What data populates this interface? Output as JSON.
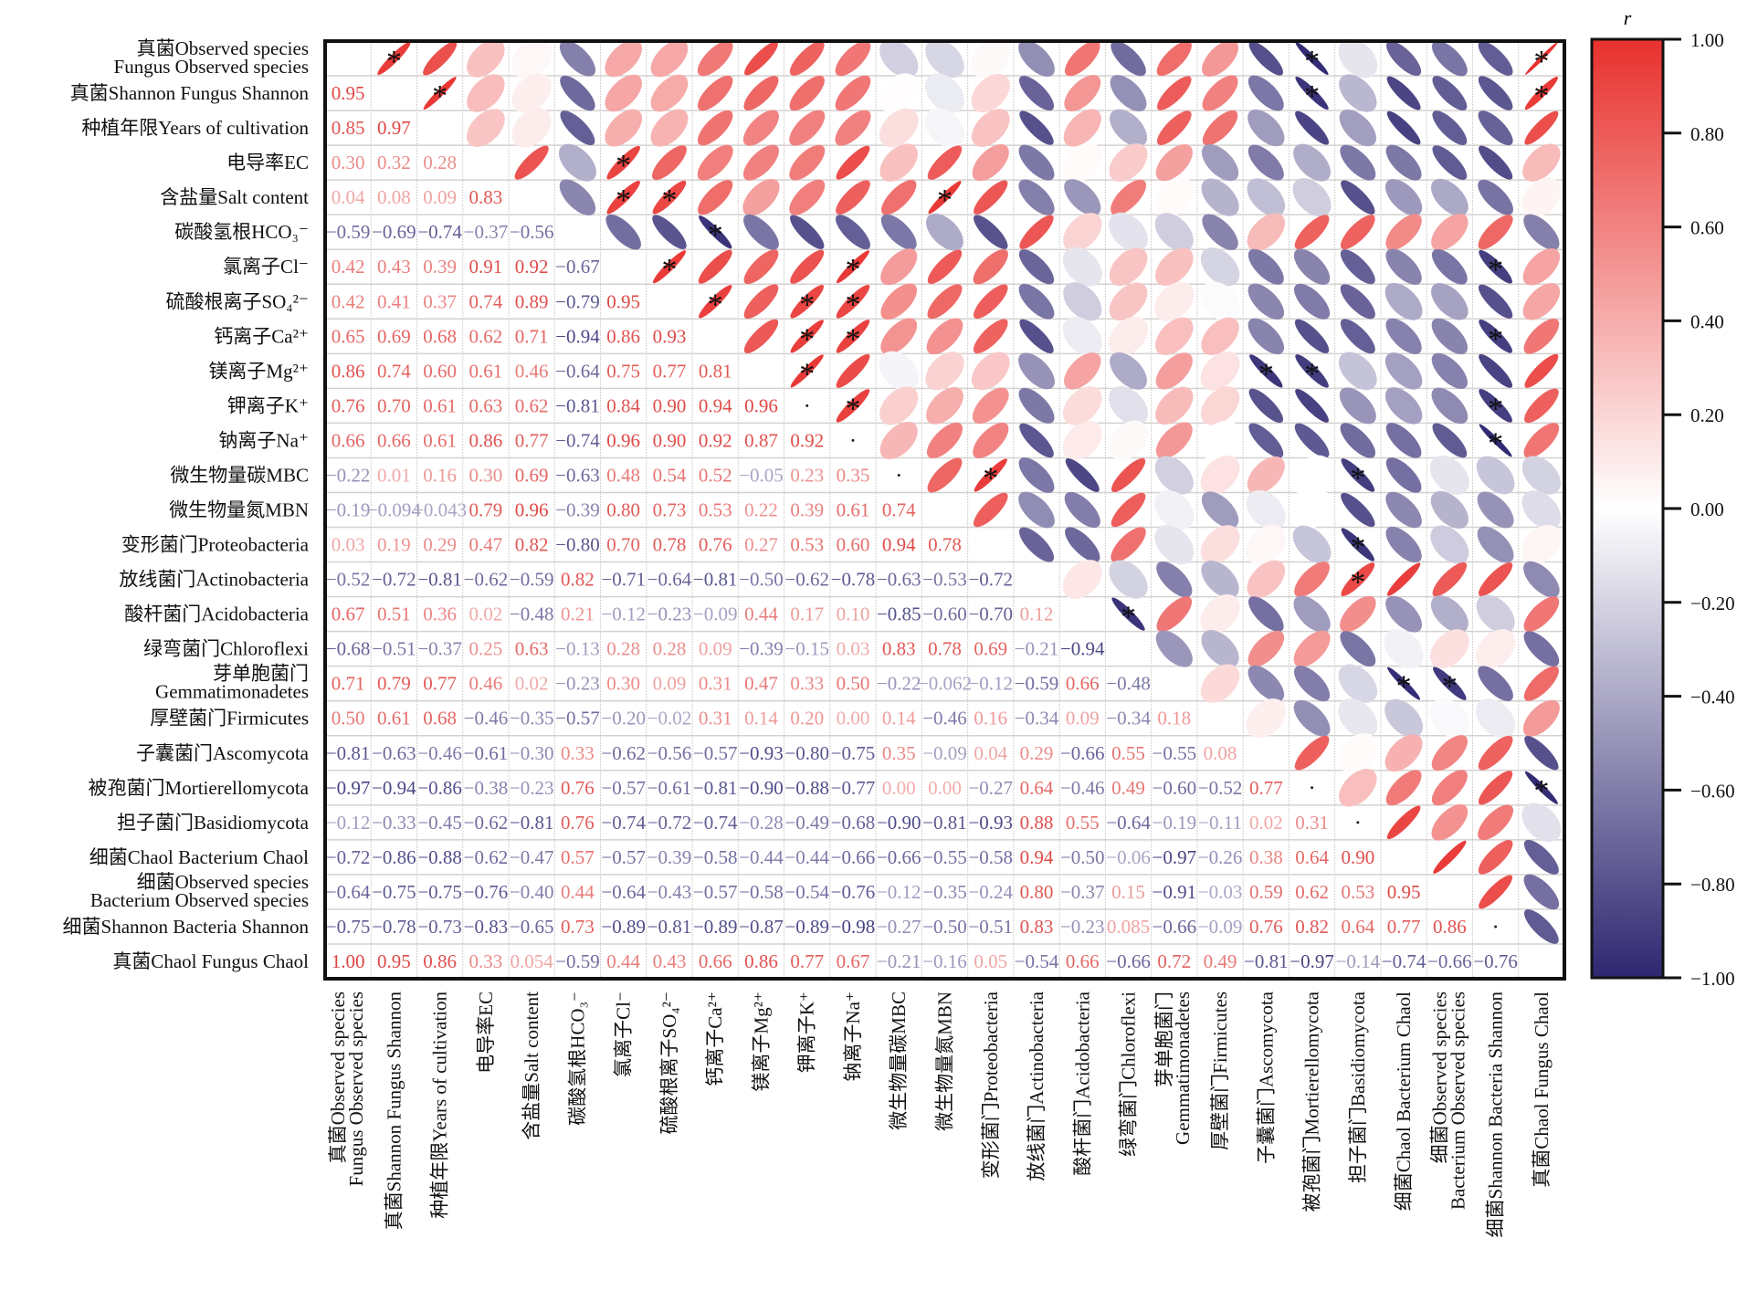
{
  "chart_data": {
    "type": "heatmap",
    "subtype": "correlation-matrix (lower: numbers, upper: ellipses)",
    "labels": [
      [
        "真菌Observed species",
        "Fungus Observed species"
      ],
      [
        "真菌Shannon Fungus Shannon"
      ],
      [
        "种植年限Years of cultivation"
      ],
      [
        "电导率EC"
      ],
      [
        "含盐量Salt content"
      ],
      [
        "碳酸氢根HCO₃⁻"
      ],
      [
        "氯离子Cl⁻"
      ],
      [
        "硫酸根离子SO₄²⁻"
      ],
      [
        "钙离子Ca²⁺"
      ],
      [
        "镁离子Mg²⁺"
      ],
      [
        "钾离子K⁺"
      ],
      [
        "钠离子Na⁺"
      ],
      [
        "微生物量碳MBC"
      ],
      [
        "微生物量氮MBN"
      ],
      [
        "变形菌门Proteobacteria"
      ],
      [
        "放线菌门Actinobacteria"
      ],
      [
        "酸杆菌门Acidobacteria"
      ],
      [
        "绿弯菌门Chloroflexi"
      ],
      [
        "芽单胞菌门",
        "Gemmatimonadetes"
      ],
      [
        "厚壁菌门Firmicutes"
      ],
      [
        "子囊菌门Ascomycota"
      ],
      [
        "被孢菌门Mortierellomycota"
      ],
      [
        "担子菌门Basidiomycota"
      ],
      [
        "细菌Chaol Bacterium Chaol"
      ],
      [
        "细菌Observed species",
        "Bacterium Observed species"
      ],
      [
        "细菌Shannon Bacteria Shannon"
      ],
      [
        "真菌Chaol Fungus Chaol"
      ]
    ],
    "lower_triangle": [
      [],
      [
        "0.95"
      ],
      [
        "0.85",
        "0.97"
      ],
      [
        "0.30",
        "0.32",
        "0.28"
      ],
      [
        "0.04",
        "0.08",
        "0.09",
        "0.83"
      ],
      [
        "-0.59",
        "-0.69",
        "-0.74",
        "-0.37",
        "-0.56"
      ],
      [
        "0.42",
        "0.43",
        "0.39",
        "0.91",
        "0.92",
        "-0.67"
      ],
      [
        "0.42",
        "0.41",
        "0.37",
        "0.74",
        "0.89",
        "-0.79",
        "0.95"
      ],
      [
        "0.65",
        "0.69",
        "0.68",
        "0.62",
        "0.71",
        "-0.94",
        "0.86",
        "0.93"
      ],
      [
        "0.86",
        "0.74",
        "0.60",
        "0.61",
        "0.46",
        "-0.64",
        "0.75",
        "0.77",
        "0.81"
      ],
      [
        "0.76",
        "0.70",
        "0.61",
        "0.63",
        "0.62",
        "-0.81",
        "0.84",
        "0.90",
        "0.94",
        "0.96"
      ],
      [
        "0.66",
        "0.66",
        "0.61",
        "0.86",
        "0.77",
        "-0.74",
        "0.96",
        "0.90",
        "0.92",
        "0.87",
        "0.92"
      ],
      [
        "-0.22",
        "0.01",
        "0.16",
        "0.30",
        "0.69",
        "-0.63",
        "0.48",
        "0.54",
        "0.52",
        "-0.05",
        "0.23",
        "0.35"
      ],
      [
        "-0.19",
        "-0.094",
        "-0.043",
        "0.79",
        "0.96",
        "-0.39",
        "0.80",
        "0.73",
        "0.53",
        "0.22",
        "0.39",
        "0.61",
        "0.74"
      ],
      [
        "0.03",
        "0.19",
        "0.29",
        "0.47",
        "0.82",
        "-0.80",
        "0.70",
        "0.78",
        "0.76",
        "0.27",
        "0.53",
        "0.60",
        "0.94",
        "0.78"
      ],
      [
        "-0.52",
        "-0.72",
        "-0.81",
        "-0.62",
        "-0.59",
        "0.82",
        "-0.71",
        "-0.64",
        "-0.81",
        "-0.50",
        "-0.62",
        "-0.78",
        "-0.63",
        "-0.53",
        "-0.72"
      ],
      [
        "0.67",
        "0.51",
        "0.36",
        "0.02",
        "-0.48",
        "0.21",
        "-0.12",
        "-0.23",
        "-0.09",
        "0.44",
        "0.17",
        "0.10",
        "-0.85",
        "-0.60",
        "-0.70",
        "0.12"
      ],
      [
        "-0.68",
        "-0.51",
        "-0.37",
        "0.25",
        "0.63",
        "-0.13",
        "0.28",
        "0.28",
        "0.09",
        "-0.39",
        "-0.15",
        "0.03",
        "0.83",
        "0.78",
        "0.69",
        "-0.21",
        "-0.94"
      ],
      [
        "0.71",
        "0.79",
        "0.77",
        "0.46",
        "0.02",
        "-0.23",
        "0.30",
        "0.09",
        "0.31",
        "0.47",
        "0.33",
        "0.50",
        "-0.22",
        "-0.062",
        "-0.12",
        "-0.59",
        "0.66",
        "-0.48"
      ],
      [
        "0.50",
        "0.61",
        "0.68",
        "-0.46",
        "-0.35",
        "-0.57",
        "-0.20",
        "-0.02",
        "0.31",
        "0.14",
        "0.20",
        "0.00",
        "0.14",
        "-0.46",
        "0.16",
        "-0.34",
        "0.09",
        "-0.34",
        "0.18"
      ],
      [
        "-0.81",
        "-0.63",
        "-0.46",
        "-0.61",
        "-0.30",
        "0.33",
        "-0.62",
        "-0.56",
        "-0.57",
        "-0.93",
        "-0.80",
        "-0.75",
        "0.35",
        "-0.09",
        "0.04",
        "0.29",
        "-0.66",
        "0.55",
        "-0.55",
        "0.08"
      ],
      [
        "-0.97",
        "-0.94",
        "-0.86",
        "-0.38",
        "-0.23",
        "0.76",
        "-0.57",
        "-0.61",
        "-0.81",
        "-0.90",
        "-0.88",
        "-0.77",
        "0.00",
        "0.00",
        "-0.27",
        "0.64",
        "-0.46",
        "0.49",
        "-0.60",
        "-0.52",
        "0.77"
      ],
      [
        "-0.12",
        "-0.33",
        "-0.45",
        "-0.62",
        "-0.81",
        "0.76",
        "-0.74",
        "-0.72",
        "-0.74",
        "-0.28",
        "-0.49",
        "-0.68",
        "-0.90",
        "-0.81",
        "-0.93",
        "0.88",
        "0.55",
        "-0.64",
        "-0.19",
        "-0.11",
        "0.02",
        "0.31"
      ],
      [
        "-0.72",
        "-0.86",
        "-0.88",
        "-0.62",
        "-0.47",
        "0.57",
        "-0.57",
        "-0.39",
        "-0.58",
        "-0.44",
        "-0.44",
        "-0.66",
        "-0.66",
        "-0.55",
        "-0.58",
        "0.94",
        "-0.50",
        "-0.06",
        "-0.97",
        "-0.26",
        "0.38",
        "0.64",
        "0.90"
      ],
      [
        "-0.64",
        "-0.75",
        "-0.75",
        "-0.76",
        "-0.40",
        "0.44",
        "-0.64",
        "-0.43",
        "-0.57",
        "-0.58",
        "-0.54",
        "-0.76",
        "-0.12",
        "-0.35",
        "-0.24",
        "0.80",
        "-0.37",
        "0.15",
        "-0.91",
        "-0.03",
        "0.59",
        "0.62",
        "0.53",
        "0.95"
      ],
      [
        "-0.75",
        "-0.78",
        "-0.73",
        "-0.83",
        "-0.65",
        "0.73",
        "-0.89",
        "-0.81",
        "-0.89",
        "-0.87",
        "-0.89",
        "-0.98",
        "-0.27",
        "-0.50",
        "-0.51",
        "0.83",
        "-0.23",
        "0.085",
        "-0.66",
        "-0.09",
        "0.76",
        "0.82",
        "0.64",
        "0.77",
        "0.86"
      ],
      [
        "1.00",
        "0.95",
        "0.86",
        "0.33",
        "0.054",
        "-0.59",
        "0.44",
        "0.43",
        "0.66",
        "0.86",
        "0.77",
        "0.67",
        "-0.21",
        "-0.16",
        "0.05",
        "-0.54",
        "0.66",
        "-0.66",
        "0.72",
        "0.49",
        "-0.81",
        "-0.97",
        "-0.14",
        "-0.74",
        "-0.66",
        "-0.76"
      ]
    ],
    "significance_marks": [
      [
        0,
        1
      ],
      [
        1,
        2
      ],
      [
        3,
        6
      ],
      [
        4,
        6
      ],
      [
        4,
        7
      ],
      [
        4,
        13
      ],
      [
        5,
        8
      ],
      [
        6,
        7
      ],
      [
        6,
        11
      ],
      [
        7,
        8
      ],
      [
        7,
        10
      ],
      [
        7,
        11
      ],
      [
        8,
        10
      ],
      [
        8,
        11
      ],
      [
        9,
        10
      ],
      [
        10,
        11
      ],
      [
        12,
        14
      ],
      [
        0,
        21
      ],
      [
        1,
        21
      ],
      [
        0,
        26
      ],
      [
        1,
        26
      ],
      [
        6,
        25
      ],
      [
        8,
        25
      ],
      [
        9,
        20
      ],
      [
        9,
        21
      ],
      [
        10,
        25
      ],
      [
        11,
        25
      ],
      [
        12,
        22
      ],
      [
        14,
        22
      ],
      [
        15,
        22
      ],
      [
        16,
        17
      ],
      [
        18,
        23
      ],
      [
        18,
        24
      ],
      [
        21,
        26
      ]
    ],
    "blank_dot_cells": [
      [
        10,
        10
      ],
      [
        11,
        11
      ],
      [
        12,
        12
      ],
      [
        21,
        21
      ],
      [
        22,
        22
      ],
      [
        25,
        25
      ]
    ],
    "colorbar": {
      "title": "r",
      "ticks": [
        "1.00",
        "0.80",
        "0.60",
        "0.40",
        "0.20",
        "0.00",
        "-0.20",
        "-0.40",
        "-0.60",
        "-0.80",
        "-1.00"
      ],
      "range": [
        -1,
        1
      ],
      "positive_color": "#e8312e",
      "negative_color": "#2e2771",
      "zero_color": "#ffffff"
    },
    "title": "",
    "xlabel": "",
    "ylabel": ""
  }
}
